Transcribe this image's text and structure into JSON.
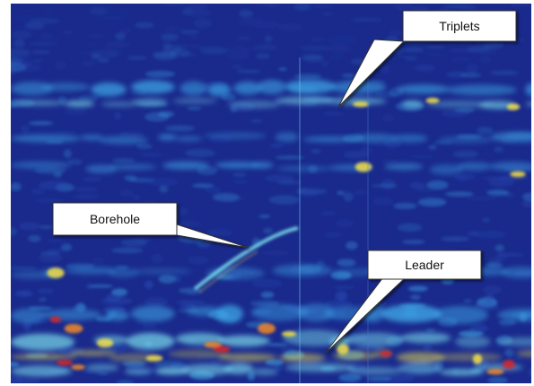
{
  "labels": {
    "triplets": "Triplets",
    "borehole": "Borehole",
    "leader": "Leader"
  },
  "colors": {
    "background": "#1a2a8c",
    "low": "#2a4fb8",
    "mid": "#3fa9e8",
    "cyan": "#7fe6f0",
    "yellow": "#f2e04a",
    "orange": "#f08a2a",
    "red": "#d8262a",
    "callout_fill": "#ffffff",
    "callout_stroke": "#333333"
  }
}
